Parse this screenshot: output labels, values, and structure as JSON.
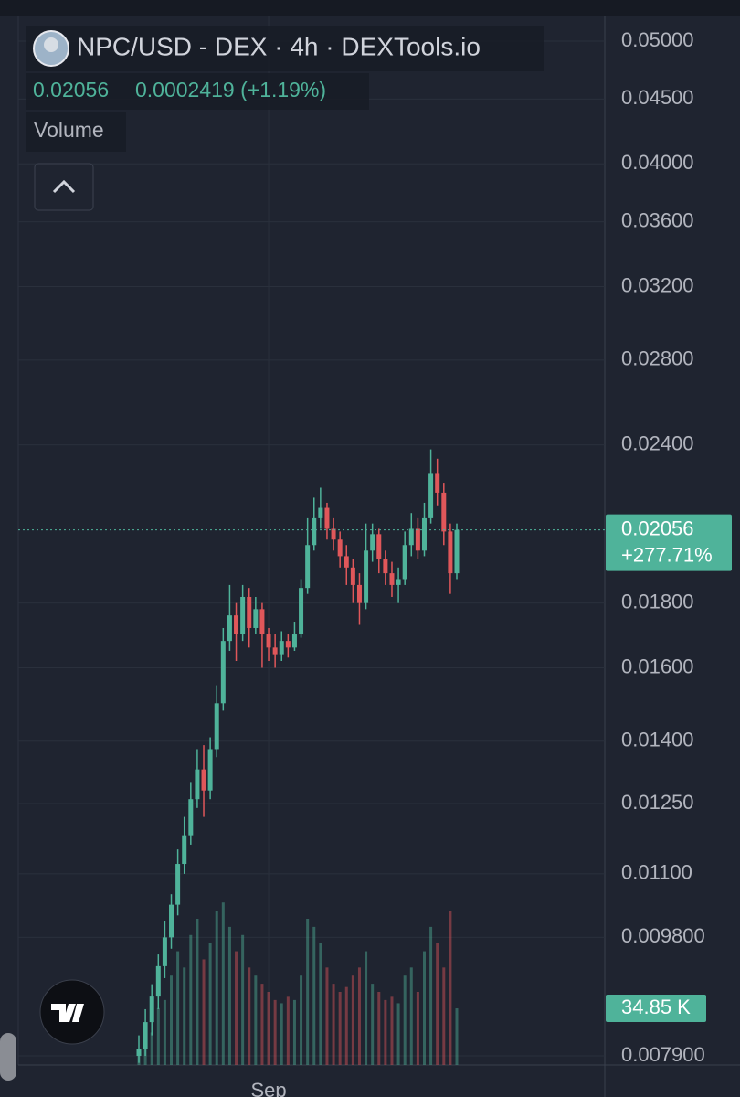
{
  "chart_data": {
    "type": "candlestick",
    "title": "NPC/USD - DEX · 4h · DEXTools.io",
    "change_label": "0.0002419 (+1.19%)",
    "change_percent_label": "+277.71%",
    "log_scale": true,
    "grid": true,
    "up_color": "#4fb39a",
    "down_color": "#e0575a",
    "ylim": [
      0.00777,
      0.0523
    ],
    "yticks": [
      {
        "value": 0.05,
        "label": "0.05000"
      },
      {
        "value": 0.045,
        "label": "0.04500"
      },
      {
        "value": 0.04,
        "label": "0.04000"
      },
      {
        "value": 0.036,
        "label": "0.03600"
      },
      {
        "value": 0.032,
        "label": "0.03200"
      },
      {
        "value": 0.028,
        "label": "0.02800"
      },
      {
        "value": 0.024,
        "label": "0.02400"
      },
      {
        "value": 0.018,
        "label": "0.01800"
      },
      {
        "value": 0.016,
        "label": "0.01600"
      },
      {
        "value": 0.014,
        "label": "0.01400"
      },
      {
        "value": 0.0125,
        "label": "0.01250"
      },
      {
        "value": 0.011,
        "label": "0.01100"
      },
      {
        "value": 0.0098,
        "label": "0.009800"
      },
      {
        "value": 0.0079,
        "label": "0.007900"
      }
    ],
    "categories": [
      null,
      null,
      null,
      null,
      null,
      null,
      null,
      null,
      null,
      null,
      null,
      null,
      null,
      null,
      null,
      null,
      null,
      null,
      null,
      null,
      "Sep",
      null,
      null,
      null,
      null,
      null,
      null,
      null,
      null,
      null,
      null,
      null,
      null,
      null,
      null,
      null,
      null,
      null,
      null,
      null,
      null,
      null,
      null,
      null,
      null,
      null,
      null,
      null,
      null,
      null
    ],
    "open": [
      0.0079,
      0.008,
      0.0084,
      0.0088,
      0.0093,
      0.0098,
      0.0104,
      0.0112,
      0.0118,
      0.0126,
      0.0133,
      0.0128,
      0.0138,
      0.015,
      0.0168,
      0.0176,
      0.017,
      0.0182,
      0.0172,
      0.0178,
      0.017,
      0.0166,
      0.0164,
      0.0168,
      0.0166,
      0.017,
      0.0185,
      0.02,
      0.021,
      0.0214,
      0.0206,
      0.0202,
      0.0196,
      0.0192,
      0.0186,
      0.018,
      0.0198,
      0.0204,
      0.0195,
      0.019,
      0.0186,
      0.0188,
      0.02,
      0.0206,
      0.0198,
      0.021,
      0.0228,
      0.022,
      0.0205,
      0.019
    ],
    "high": [
      0.0082,
      0.0086,
      0.009,
      0.0095,
      0.0101,
      0.0106,
      0.0115,
      0.0122,
      0.013,
      0.0138,
      0.0139,
      0.0141,
      0.0155,
      0.0172,
      0.0186,
      0.018,
      0.0186,
      0.0185,
      0.0182,
      0.018,
      0.0172,
      0.017,
      0.0171,
      0.017,
      0.0174,
      0.0188,
      0.021,
      0.0218,
      0.0222,
      0.0216,
      0.021,
      0.0205,
      0.02,
      0.0195,
      0.019,
      0.0208,
      0.0208,
      0.0206,
      0.0198,
      0.0194,
      0.0192,
      0.0205,
      0.0212,
      0.021,
      0.0216,
      0.0238,
      0.0234,
      0.0224,
      0.0208,
      0.0208
    ],
    "low": [
      0.0078,
      0.0079,
      0.0082,
      0.0086,
      0.0091,
      0.0096,
      0.0102,
      0.011,
      0.0116,
      0.0124,
      0.0122,
      0.0126,
      0.0136,
      0.0148,
      0.0165,
      0.0162,
      0.0168,
      0.0166,
      0.017,
      0.016,
      0.0162,
      0.016,
      0.0162,
      0.0163,
      0.0165,
      0.0169,
      0.0183,
      0.0198,
      0.0206,
      0.0202,
      0.0198,
      0.0192,
      0.0186,
      0.018,
      0.0173,
      0.0178,
      0.0194,
      0.019,
      0.0186,
      0.0182,
      0.018,
      0.0186,
      0.0196,
      0.0195,
      0.0196,
      0.0208,
      0.0215,
      0.02,
      0.0183,
      0.0188
    ],
    "close": [
      0.008,
      0.0084,
      0.0088,
      0.0093,
      0.0098,
      0.0104,
      0.0112,
      0.0118,
      0.0126,
      0.0133,
      0.0128,
      0.0138,
      0.015,
      0.0168,
      0.0176,
      0.017,
      0.0182,
      0.0172,
      0.0178,
      0.017,
      0.0166,
      0.0164,
      0.0168,
      0.0166,
      0.017,
      0.0185,
      0.02,
      0.021,
      0.0214,
      0.0206,
      0.0202,
      0.0196,
      0.0192,
      0.0186,
      0.018,
      0.0198,
      0.0204,
      0.0195,
      0.019,
      0.0186,
      0.0188,
      0.02,
      0.0206,
      0.0198,
      0.021,
      0.0228,
      0.022,
      0.0205,
      0.019,
      0.02056
    ],
    "volume": {
      "name": "Volume",
      "vlim": [
        0,
        180
      ],
      "values": [
        8,
        12,
        20,
        35,
        40,
        55,
        70,
        60,
        80,
        90,
        65,
        75,
        95,
        100,
        85,
        70,
        80,
        60,
        55,
        50,
        45,
        40,
        38,
        42,
        40,
        55,
        90,
        85,
        75,
        60,
        50,
        45,
        48,
        55,
        60,
        70,
        50,
        45,
        40,
        42,
        38,
        55,
        60,
        45,
        70,
        85,
        75,
        60,
        95,
        34.85
      ],
      "value_labels": [
        null,
        null,
        null,
        null,
        null,
        null,
        null,
        null,
        null,
        null,
        null,
        null,
        null,
        null,
        null,
        null,
        null,
        null,
        null,
        null,
        null,
        null,
        null,
        null,
        null,
        null,
        null,
        null,
        null,
        null,
        null,
        null,
        null,
        null,
        null,
        null,
        null,
        null,
        null,
        null,
        null,
        null,
        null,
        null,
        null,
        null,
        null,
        null,
        null,
        "34.85 K"
      ]
    }
  }
}
